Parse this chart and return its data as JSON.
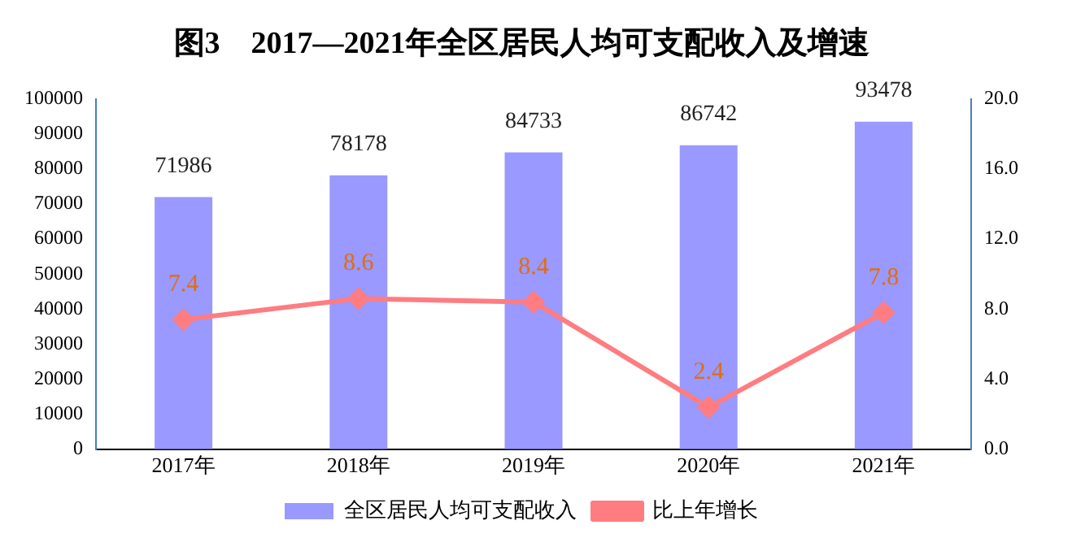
{
  "chart_data": {
    "type": "bar",
    "title": "图3　2017—2021年全区居民人均可支配收入及增速",
    "categories": [
      "2017年",
      "2018年",
      "2019年",
      "2020年",
      "2021年"
    ],
    "series": [
      {
        "name": "全区居民人均可支配收入",
        "color": "#9999ff",
        "values": [
          71986,
          78178,
          84733,
          86742,
          93478
        ]
      },
      {
        "name": "比上年增长",
        "type": "line",
        "axis": "y2",
        "color": "#ff7c80",
        "values": [
          7.4,
          8.6,
          8.4,
          2.4,
          7.8
        ]
      }
    ],
    "ylim": [
      0,
      100000
    ],
    "yticks": [
      0,
      10000,
      20000,
      30000,
      40000,
      50000,
      60000,
      70000,
      80000,
      90000,
      100000
    ],
    "y2lim": [
      0,
      20
    ],
    "y2ticks": [
      {
        "value": 0,
        "label": "0.0"
      },
      {
        "value": 4,
        "label": "4.0"
      },
      {
        "value": 8,
        "label": "8.0"
      },
      {
        "value": 12,
        "label": "12.0"
      },
      {
        "value": 16,
        "label": "16.0"
      },
      {
        "value": 20,
        "label": "20.0"
      }
    ],
    "data_labels": true,
    "legend": "bottom",
    "grid": false,
    "marker": "diamond",
    "line_style": "solid"
  }
}
